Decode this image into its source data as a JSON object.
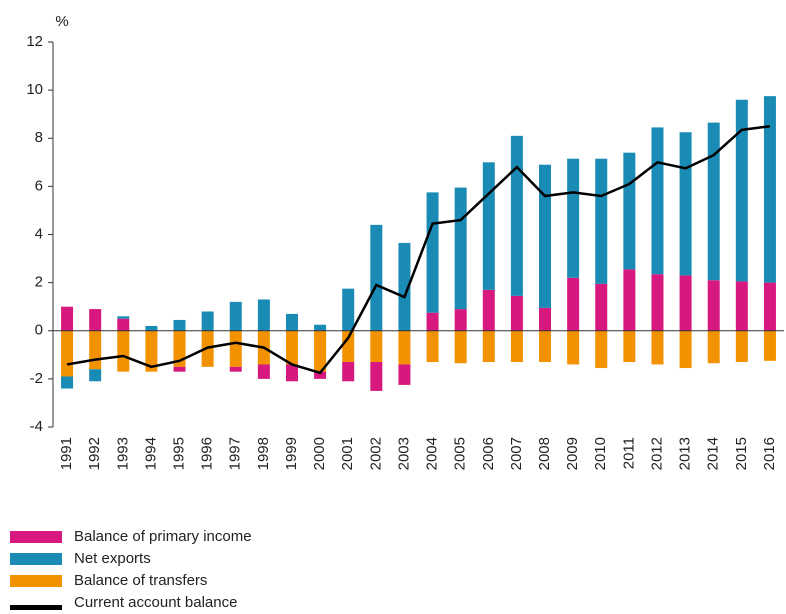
{
  "chart_data": {
    "type": "bar",
    "y_label": "%",
    "categories": [
      "1991",
      "1992",
      "1993",
      "1994",
      "1995",
      "1996",
      "1997",
      "1998",
      "1999",
      "2000",
      "2001",
      "2002",
      "2003",
      "2004",
      "2005",
      "2006",
      "2007",
      "2008",
      "2009",
      "2010",
      "2011",
      "2012",
      "2013",
      "2014",
      "2015",
      "2016"
    ],
    "series": [
      {
        "name": "Balance of primary income",
        "color": "#d6187f",
        "values": [
          1.0,
          0.9,
          0.5,
          0,
          -0.2,
          0,
          -0.2,
          -0.6,
          -0.7,
          -0.3,
          -0.8,
          -1.2,
          -0.85,
          0.75,
          0.9,
          1.7,
          1.45,
          0.95,
          2.2,
          1.95,
          2.55,
          2.35,
          2.3,
          2.1,
          2.05,
          2.0
        ]
      },
      {
        "name": "Net exports",
        "color": "#1a8bb5",
        "values": [
          -0.5,
          -0.5,
          0.1,
          0.2,
          0.45,
          0.8,
          1.2,
          1.3,
          0.7,
          0.25,
          1.75,
          4.4,
          3.65,
          5.0,
          5.05,
          5.3,
          6.65,
          5.95,
          4.95,
          5.2,
          4.85,
          6.1,
          5.95,
          6.55,
          7.55,
          7.75
        ]
      },
      {
        "name": "Balance of transfers",
        "color": "#f39200",
        "values": [
          -1.9,
          -1.6,
          -1.7,
          -1.7,
          -1.5,
          -1.5,
          -1.5,
          -1.4,
          -1.4,
          -1.7,
          -1.3,
          -1.3,
          -1.4,
          -1.3,
          -1.35,
          -1.3,
          -1.3,
          -1.3,
          -1.4,
          -1.55,
          -1.3,
          -1.4,
          -1.55,
          -1.35,
          -1.3,
          -1.25
        ]
      },
      {
        "name": "Current account balance",
        "color": "#000000",
        "type": "line",
        "values": [
          -1.4,
          -1.2,
          -1.05,
          -1.5,
          -1.25,
          -0.7,
          -0.5,
          -0.7,
          -1.4,
          -1.75,
          -0.3,
          1.9,
          1.4,
          4.45,
          4.6,
          5.7,
          6.8,
          5.6,
          5.75,
          5.6,
          6.1,
          7.0,
          6.75,
          7.3,
          8.35,
          8.5
        ]
      }
    ],
    "ylim": [
      -4,
      12
    ],
    "yticks": [
      -4,
      -2,
      0,
      2,
      4,
      6,
      8,
      10,
      12
    ]
  }
}
